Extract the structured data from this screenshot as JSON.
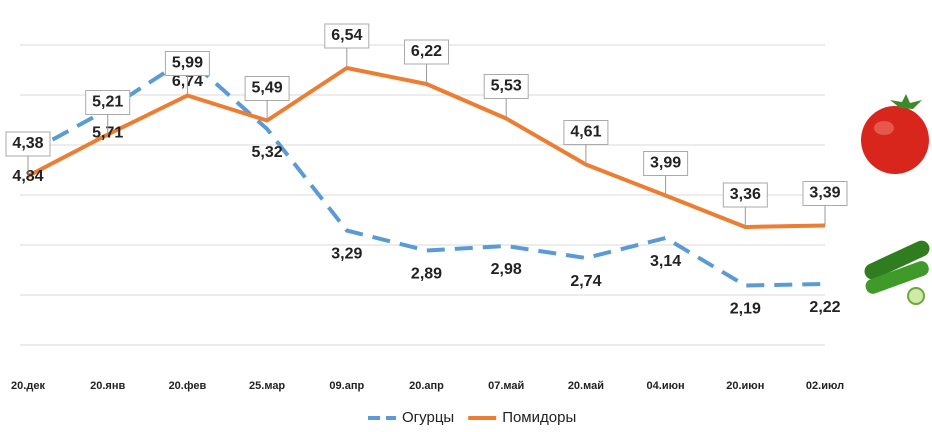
{
  "chart_data": {
    "type": "line",
    "categories": [
      "20.дек",
      "20.янв",
      "20.фев",
      "25.мар",
      "09.апр",
      "20.апр",
      "07.май",
      "20.май",
      "04.июн",
      "20.июн",
      "02.июл"
    ],
    "series": [
      {
        "name": "Огурцы",
        "color": "#5b9bd5",
        "dashed": true,
        "values": [
          4.84,
          5.71,
          6.74,
          5.32,
          3.29,
          2.89,
          2.98,
          2.74,
          3.14,
          2.19,
          2.22
        ],
        "value_labels": [
          "4,84",
          "5,71",
          "6,74",
          "5,32",
          "3,29",
          "2,89",
          "2,98",
          "2,74",
          "3,14",
          "2,19",
          "2,22"
        ]
      },
      {
        "name": "Помидоры",
        "color": "#ed7d31",
        "dashed": false,
        "values": [
          4.38,
          5.21,
          5.99,
          5.49,
          6.54,
          6.22,
          5.53,
          4.61,
          3.99,
          3.36,
          3.39
        ],
        "value_labels": [
          "4,38",
          "5,21",
          "5,99",
          "5,49",
          "6,54",
          "6,22",
          "5,53",
          "4,61",
          "3,99",
          "3,36",
          "3,39"
        ]
      }
    ],
    "ylim": [
      0,
      7.6
    ],
    "yticks": [
      1,
      2,
      3,
      4,
      5,
      6,
      7
    ],
    "grid": true,
    "legend": "bottom"
  }
}
